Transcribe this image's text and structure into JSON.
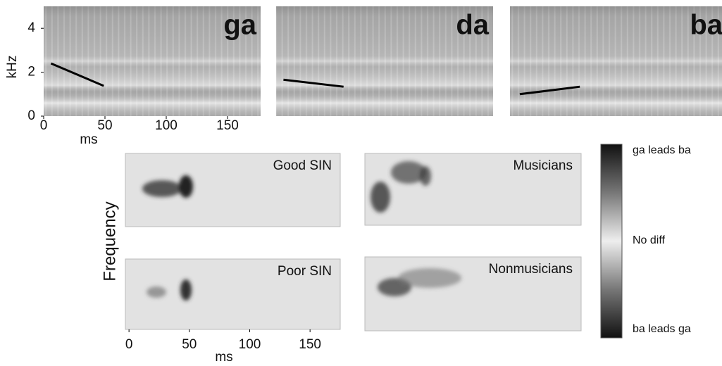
{
  "spectrograms": {
    "y_label": "kHz",
    "x_label": "ms",
    "ylim": [
      0,
      5
    ],
    "yticks": [
      0,
      2,
      4
    ],
    "xlim": [
      0,
      177
    ],
    "xticks": [
      0,
      50,
      100,
      150
    ],
    "panels": [
      {
        "title": "ga",
        "formant_ms": [
          6,
          49
        ],
        "formant_khz": [
          2.4,
          1.38
        ]
      },
      {
        "title": "da",
        "formant_ms": [
          6,
          55
        ],
        "formant_khz": [
          1.66,
          1.34
        ]
      },
      {
        "title": "ba",
        "formant_ms": [
          8,
          57
        ],
        "formant_khz": [
          1.0,
          1.34
        ]
      }
    ]
  },
  "difference_maps": {
    "y_label": "Frequency",
    "x_label": "ms",
    "xlim": [
      -3,
      175
    ],
    "xticks": [
      0,
      50,
      100,
      150
    ],
    "panels": [
      {
        "title": "Good SIN"
      },
      {
        "title": "Musicians"
      },
      {
        "title": "Poor SIN"
      },
      {
        "title": "Nonmusicians"
      }
    ]
  },
  "colorbar": {
    "labels": [
      "ga leads ba",
      "No diff",
      "ba leads ga"
    ]
  }
}
